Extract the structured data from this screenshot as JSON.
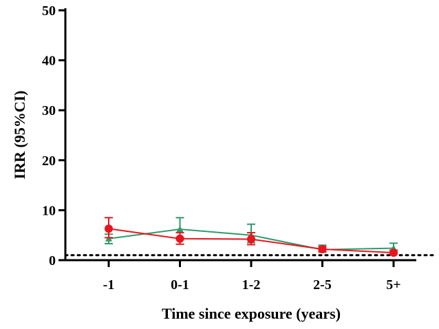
{
  "chart_data": {
    "type": "line",
    "title": "",
    "xlabel": "Time since exposure (years)",
    "ylabel": "IRR (95%CI)",
    "categories": [
      "-1",
      "0-1",
      "1-2",
      "2-5",
      "5+"
    ],
    "ylim": [
      0,
      50
    ],
    "yticks": [
      0,
      10,
      20,
      30,
      40,
      50
    ],
    "reference_line": 1,
    "grid": false,
    "series": [
      {
        "color": "#2e9b6a",
        "marker": "triangle",
        "values": [
          4.3,
          6.2,
          5.0,
          2.1,
          2.4
        ],
        "ci_low": [
          3.3,
          4.5,
          3.5,
          1.6,
          1.6
        ],
        "ci_high": [
          5.2,
          8.5,
          7.2,
          3.0,
          3.4
        ]
      },
      {
        "color": "#e8141e",
        "marker": "circle",
        "values": [
          6.3,
          4.3,
          4.2,
          2.2,
          1.5
        ],
        "ci_low": [
          4.5,
          3.2,
          3.1,
          1.7,
          1.2
        ],
        "ci_high": [
          8.5,
          5.5,
          5.5,
          2.7,
          2.0
        ]
      }
    ]
  }
}
